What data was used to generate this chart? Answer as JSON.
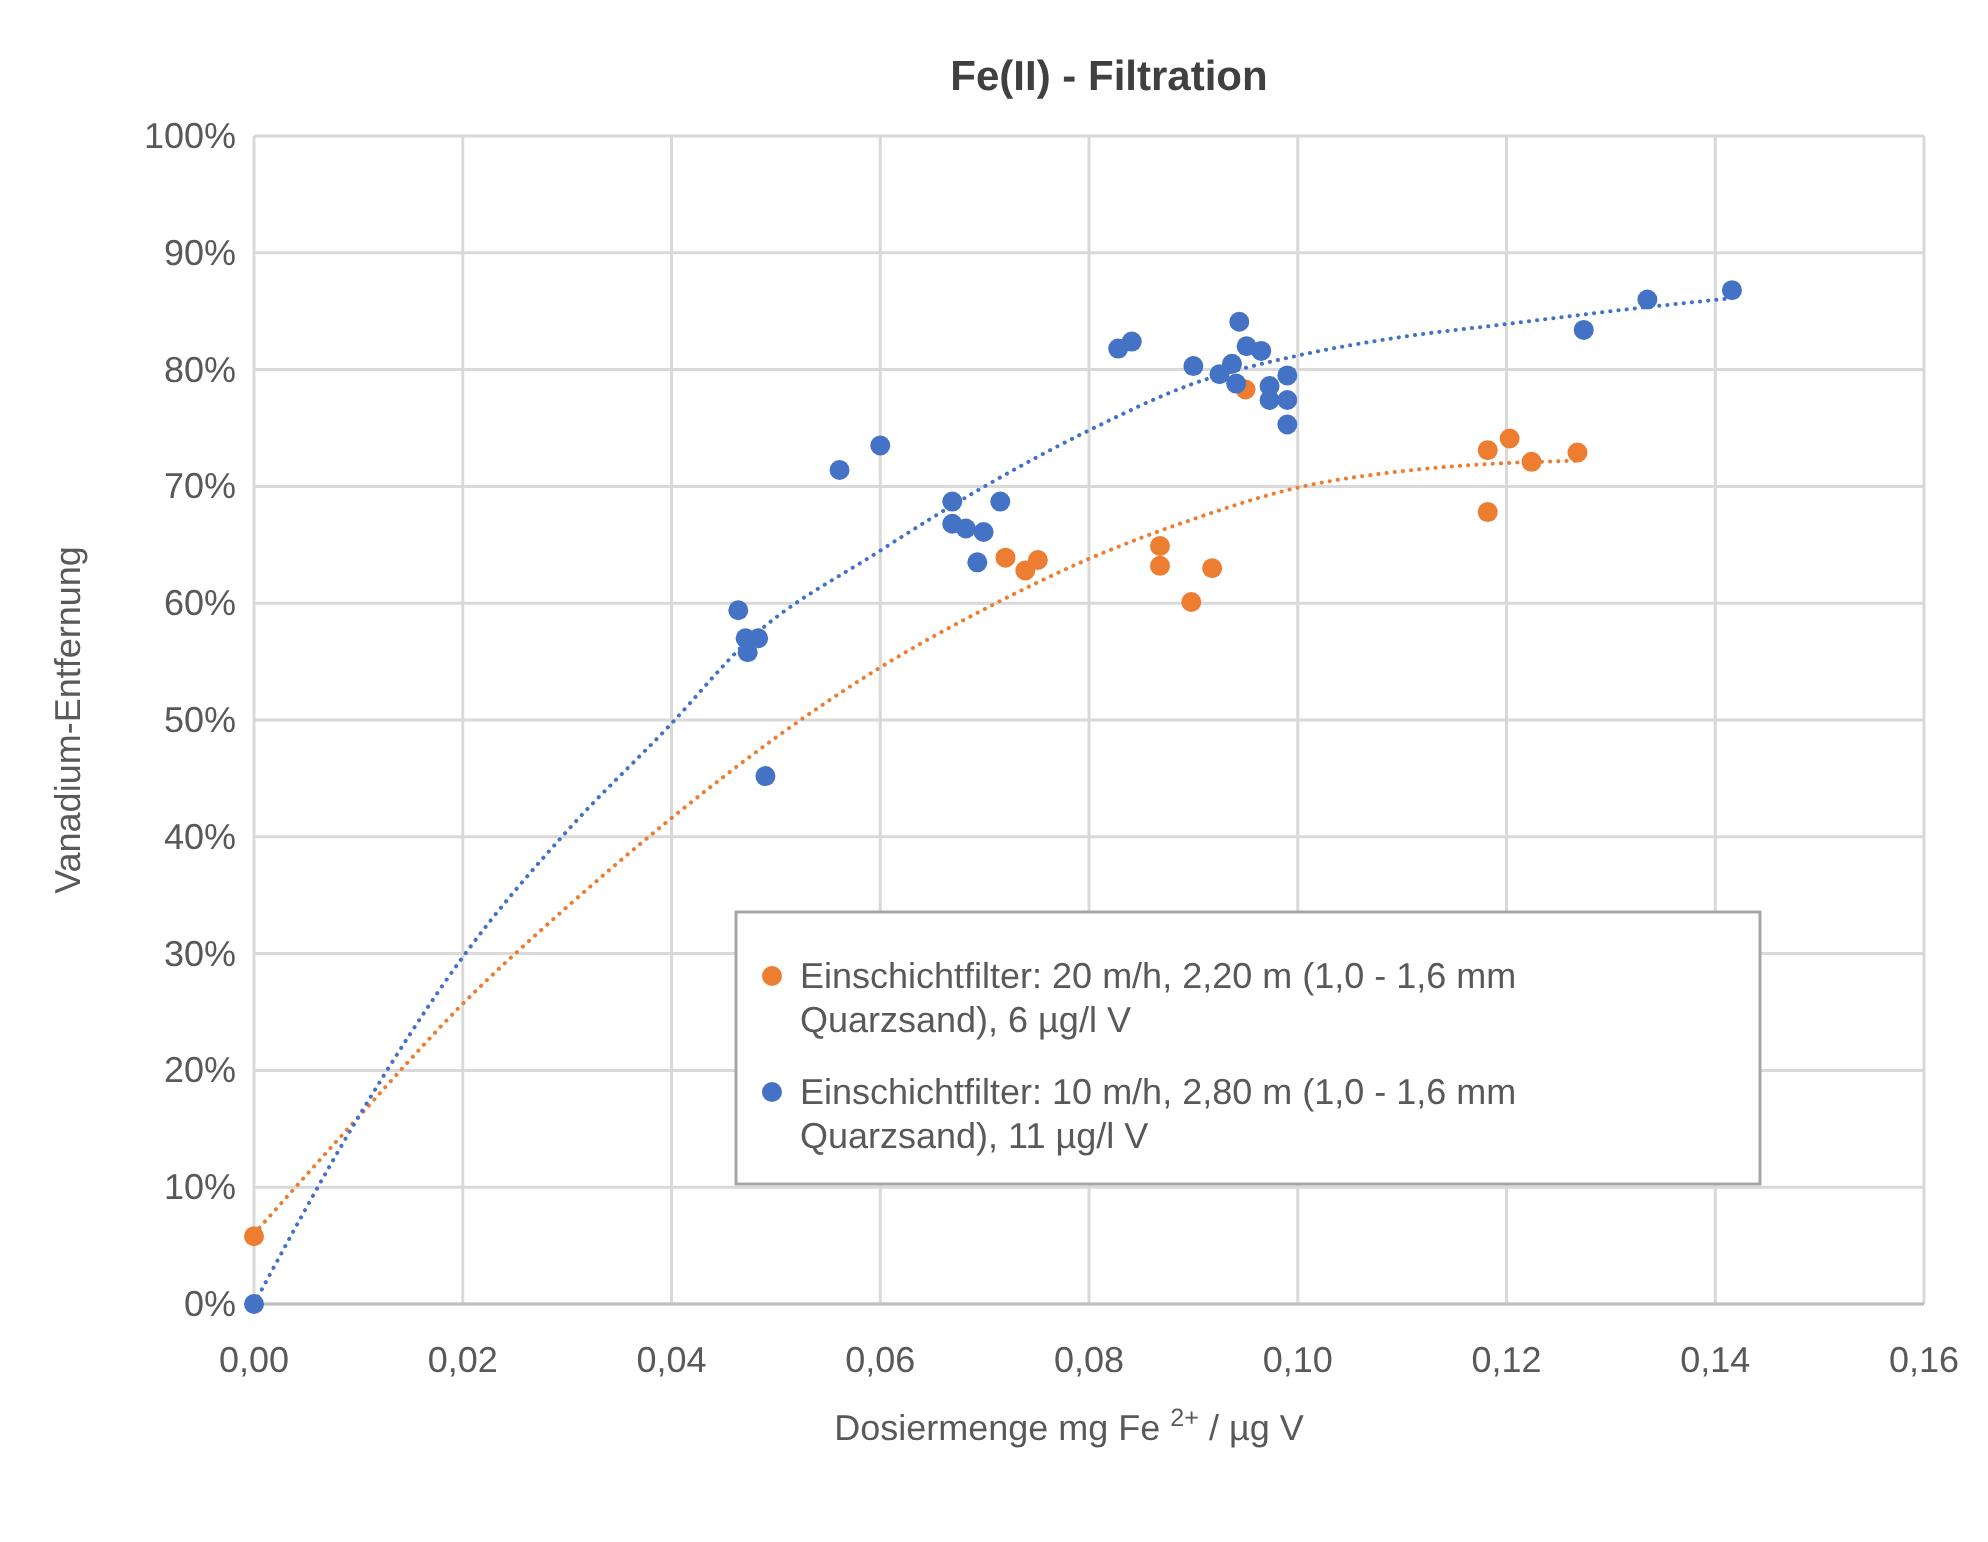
{
  "chart_data": {
    "type": "scatter",
    "title": "Fe(II) - Filtration",
    "xlabel": "Dosiermenge mg Fe $^{2+}$ / µg V",
    "ylabel": "Vanadium-Entfernung",
    "xlim": [
      0,
      0.16
    ],
    "ylim": [
      0,
      100
    ],
    "xticks": [
      {
        "value": 0,
        "label": "0,00"
      },
      {
        "value": 0.02,
        "label": "0,02"
      },
      {
        "value": 0.04,
        "label": "0,04"
      },
      {
        "value": 0.06,
        "label": "0,06"
      },
      {
        "value": 0.08,
        "label": "0,08"
      },
      {
        "value": 0.1,
        "label": "0,10"
      },
      {
        "value": 0.12,
        "label": "0,12"
      },
      {
        "value": 0.14,
        "label": "0,14"
      },
      {
        "value": 0.16,
        "label": "0,16"
      }
    ],
    "yticks": [
      {
        "value": 0,
        "label": "0%"
      },
      {
        "value": 10,
        "label": "10%"
      },
      {
        "value": 20,
        "label": "20%"
      },
      {
        "value": 30,
        "label": "30%"
      },
      {
        "value": 40,
        "label": "40%"
      },
      {
        "value": 50,
        "label": "50%"
      },
      {
        "value": 60,
        "label": "60%"
      },
      {
        "value": 70,
        "label": "70%"
      },
      {
        "value": 80,
        "label": "80%"
      },
      {
        "value": 90,
        "label": "90%"
      },
      {
        "value": 100,
        "label": "100%"
      }
    ],
    "grid": true,
    "legend": "bottom right",
    "marker": "circle",
    "series": [
      {
        "type": "line",
        "color": "#ed7d31",
        "line_style": "dotted",
        "marker": "none",
        "x": [
          0,
          0.01,
          0.02,
          0.03,
          0.04,
          0.05,
          0.06,
          0.07,
          0.08,
          0.09,
          0.1,
          0.11,
          0.12,
          0.127
        ],
        "values": [
          6,
          16,
          25.7,
          34,
          41.6,
          48.5,
          54.5,
          59.5,
          63.8,
          67.2,
          69.9,
          71.3,
          72,
          72.2
        ]
      },
      {
        "type": "line",
        "color": "#4472c4",
        "line_style": "dotted",
        "marker": "none",
        "x": [
          0,
          0.01,
          0.02,
          0.03,
          0.04,
          0.047,
          0.06,
          0.07,
          0.08,
          0.09,
          0.1,
          0.11,
          0.12,
          0.13,
          0.1414
        ],
        "values": [
          0,
          16,
          29.7,
          40.5,
          49.7,
          56.5,
          64.5,
          70,
          74.8,
          78.8,
          81.2,
          82.8,
          83.9,
          85,
          86.1
        ]
      },
      {
        "name": "Einschichtfilter: 20 m/h, 2,20 m (1,0 - 1,6 mm Quarzsand), 6 µg/l V",
        "color": "#ed7d31",
        "x": [
          0,
          0.072,
          0.0739,
          0.0751,
          0.0868,
          0.0868,
          0.0898,
          0.0918,
          0.095,
          0.1182,
          0.1203,
          0.1224,
          0.1268,
          0.1182
        ],
        "values": [
          5.8,
          63.9,
          62.8,
          63.7,
          64.9,
          63.2,
          60.1,
          63,
          78.3,
          73.1,
          74.1,
          72.1,
          72.9,
          67.8
        ]
      },
      {
        "name": "Einschichtfilter: 10 m/h, 2,80 m (1,0 - 1,6 mm Quarzsand), 11 µg/l V",
        "color": "#4472c4",
        "x": [
          0,
          0.0464,
          0.0471,
          0.0483,
          0.0473,
          0.049,
          0.0561,
          0.06,
          0.0669,
          0.0669,
          0.0682,
          0.0699,
          0.0693,
          0.0715,
          0.0828,
          0.0841,
          0.09,
          0.0925,
          0.0937,
          0.0941,
          0.0944,
          0.0951,
          0.0965,
          0.0973,
          0.0973,
          0.099,
          0.099,
          0.099,
          0.1274,
          0.1335,
          0.1416
        ],
        "values": [
          0,
          59.4,
          57,
          57,
          55.8,
          45.2,
          71.4,
          73.5,
          68.7,
          66.8,
          66.4,
          66.1,
          63.5,
          68.7,
          81.8,
          82.4,
          80.3,
          79.6,
          80.5,
          78.8,
          84.1,
          82,
          81.6,
          77.4,
          78.6,
          79.5,
          77.4,
          75.3,
          83.4,
          86,
          86.8
        ]
      }
    ]
  }
}
